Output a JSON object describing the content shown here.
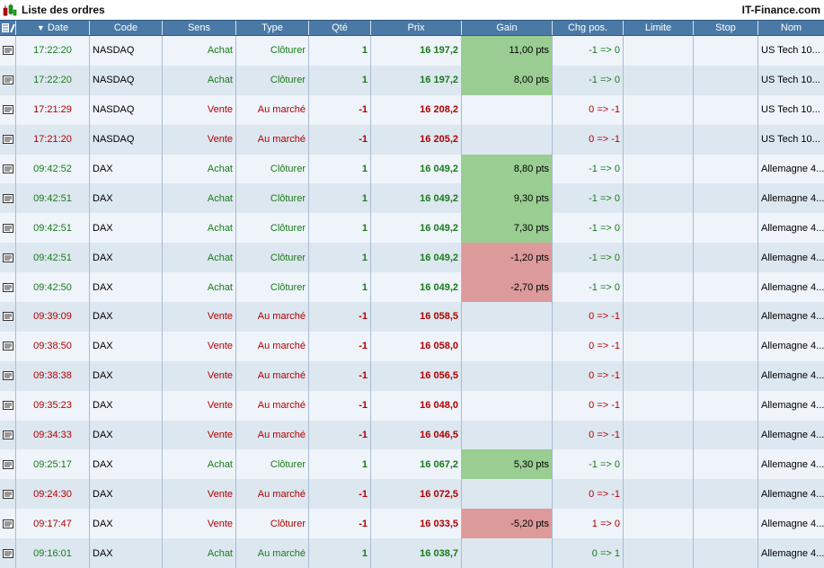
{
  "window": {
    "title": "Liste des ordres",
    "brand": "IT-Finance.com"
  },
  "header": {
    "date": "Date",
    "code": "Code",
    "sens": "Sens",
    "type": "Type",
    "qte": "Qté",
    "prix": "Prix",
    "gain": "Gain",
    "chg": "Chg pos.",
    "limite": "Limite",
    "stop": "Stop",
    "nom": "Nom"
  },
  "colors": {
    "buy": "#1a7a1a",
    "sell": "#b00000",
    "gain_pos": "#9acd92",
    "gain_neg": "#dc9a9a",
    "header": "#4a79a6"
  },
  "orders": [
    {
      "date": "17:22:20",
      "code": "NASDAQ",
      "sens": "Achat",
      "type": "Clôturer",
      "qte": "1",
      "prix": "16 197,2",
      "gain": "11,00 pts",
      "chg": "-1 => 0",
      "limite": "",
      "stop": "",
      "nom": "US Tech 10...",
      "side": "buy",
      "gain_state": "pos"
    },
    {
      "date": "17:22:20",
      "code": "NASDAQ",
      "sens": "Achat",
      "type": "Clôturer",
      "qte": "1",
      "prix": "16 197,2",
      "gain": "8,00 pts",
      "chg": "-1 => 0",
      "limite": "",
      "stop": "",
      "nom": "US Tech 10...",
      "side": "buy",
      "gain_state": "pos"
    },
    {
      "date": "17:21:29",
      "code": "NASDAQ",
      "sens": "Vente",
      "type": "Au marché",
      "qte": "-1",
      "prix": "16 208,2",
      "gain": "",
      "chg": "0 => -1",
      "limite": "",
      "stop": "",
      "nom": "US Tech 10...",
      "side": "sell",
      "gain_state": "none"
    },
    {
      "date": "17:21:20",
      "code": "NASDAQ",
      "sens": "Vente",
      "type": "Au marché",
      "qte": "-1",
      "prix": "16 205,2",
      "gain": "",
      "chg": "0 => -1",
      "limite": "",
      "stop": "",
      "nom": "US Tech 10...",
      "side": "sell",
      "gain_state": "none"
    },
    {
      "date": "09:42:52",
      "code": "DAX",
      "sens": "Achat",
      "type": "Clôturer",
      "qte": "1",
      "prix": "16 049,2",
      "gain": "8,80 pts",
      "chg": "-1 => 0",
      "limite": "",
      "stop": "",
      "nom": "Allemagne 4...",
      "side": "buy",
      "gain_state": "pos"
    },
    {
      "date": "09:42:51",
      "code": "DAX",
      "sens": "Achat",
      "type": "Clôturer",
      "qte": "1",
      "prix": "16 049,2",
      "gain": "9,30 pts",
      "chg": "-1 => 0",
      "limite": "",
      "stop": "",
      "nom": "Allemagne 4...",
      "side": "buy",
      "gain_state": "pos"
    },
    {
      "date": "09:42:51",
      "code": "DAX",
      "sens": "Achat",
      "type": "Clôturer",
      "qte": "1",
      "prix": "16 049,2",
      "gain": "7,30 pts",
      "chg": "-1 => 0",
      "limite": "",
      "stop": "",
      "nom": "Allemagne 4...",
      "side": "buy",
      "gain_state": "pos"
    },
    {
      "date": "09:42:51",
      "code": "DAX",
      "sens": "Achat",
      "type": "Clôturer",
      "qte": "1",
      "prix": "16 049,2",
      "gain": "-1,20 pts",
      "chg": "-1 => 0",
      "limite": "",
      "stop": "",
      "nom": "Allemagne 4...",
      "side": "buy",
      "gain_state": "neg"
    },
    {
      "date": "09:42:50",
      "code": "DAX",
      "sens": "Achat",
      "type": "Clôturer",
      "qte": "1",
      "prix": "16 049,2",
      "gain": "-2,70 pts",
      "chg": "-1 => 0",
      "limite": "",
      "stop": "",
      "nom": "Allemagne 4...",
      "side": "buy",
      "gain_state": "neg"
    },
    {
      "date": "09:39:09",
      "code": "DAX",
      "sens": "Vente",
      "type": "Au marché",
      "qte": "-1",
      "prix": "16 058,5",
      "gain": "",
      "chg": "0 => -1",
      "limite": "",
      "stop": "",
      "nom": "Allemagne 4...",
      "side": "sell",
      "gain_state": "none"
    },
    {
      "date": "09:38:50",
      "code": "DAX",
      "sens": "Vente",
      "type": "Au marché",
      "qte": "-1",
      "prix": "16 058,0",
      "gain": "",
      "chg": "0 => -1",
      "limite": "",
      "stop": "",
      "nom": "Allemagne 4...",
      "side": "sell",
      "gain_state": "none"
    },
    {
      "date": "09:38:38",
      "code": "DAX",
      "sens": "Vente",
      "type": "Au marché",
      "qte": "-1",
      "prix": "16 056,5",
      "gain": "",
      "chg": "0 => -1",
      "limite": "",
      "stop": "",
      "nom": "Allemagne 4...",
      "side": "sell",
      "gain_state": "none"
    },
    {
      "date": "09:35:23",
      "code": "DAX",
      "sens": "Vente",
      "type": "Au marché",
      "qte": "-1",
      "prix": "16 048,0",
      "gain": "",
      "chg": "0 => -1",
      "limite": "",
      "stop": "",
      "nom": "Allemagne 4...",
      "side": "sell",
      "gain_state": "none"
    },
    {
      "date": "09:34:33",
      "code": "DAX",
      "sens": "Vente",
      "type": "Au marché",
      "qte": "-1",
      "prix": "16 046,5",
      "gain": "",
      "chg": "0 => -1",
      "limite": "",
      "stop": "",
      "nom": "Allemagne 4...",
      "side": "sell",
      "gain_state": "none"
    },
    {
      "date": "09:25:17",
      "code": "DAX",
      "sens": "Achat",
      "type": "Clôturer",
      "qte": "1",
      "prix": "16 067,2",
      "gain": "5,30 pts",
      "chg": "-1 => 0",
      "limite": "",
      "stop": "",
      "nom": "Allemagne 4...",
      "side": "buy",
      "gain_state": "pos"
    },
    {
      "date": "09:24:30",
      "code": "DAX",
      "sens": "Vente",
      "type": "Au marché",
      "qte": "-1",
      "prix": "16 072,5",
      "gain": "",
      "chg": "0 => -1",
      "limite": "",
      "stop": "",
      "nom": "Allemagne 4...",
      "side": "sell",
      "gain_state": "none"
    },
    {
      "date": "09:17:47",
      "code": "DAX",
      "sens": "Vente",
      "type": "Clôturer",
      "qte": "-1",
      "prix": "16 033,5",
      "gain": "-5,20 pts",
      "chg": "1 => 0",
      "limite": "",
      "stop": "",
      "nom": "Allemagne 4...",
      "side": "sell",
      "gain_state": "neg"
    },
    {
      "date": "09:16:01",
      "code": "DAX",
      "sens": "Achat",
      "type": "Au marché",
      "qte": "1",
      "prix": "16 038,7",
      "gain": "",
      "chg": "0 => 1",
      "limite": "",
      "stop": "",
      "nom": "Allemagne 4...",
      "side": "buy",
      "gain_state": "none"
    }
  ]
}
